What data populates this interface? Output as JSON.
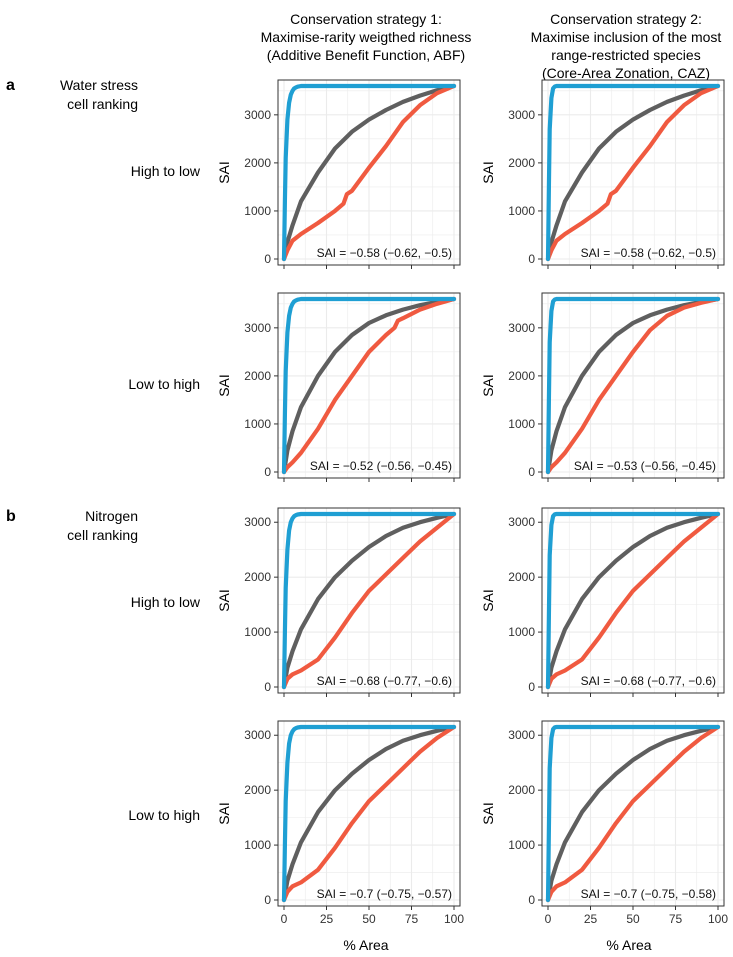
{
  "figure": {
    "column_headers": [
      [
        "Conservation strategy 1:",
        "Maximise-rarity weigthed richness",
        "(Additive Benefit Function, ABF)"
      ],
      [
        "Conservation strategy 2:",
        "Maximise inclusion of the most",
        "range-restricted species",
        "(Core-Area Zonation, CAZ)"
      ]
    ],
    "sections": [
      {
        "letter": "a",
        "label_lines": [
          "Water stress",
          "cell ranking"
        ]
      },
      {
        "letter": "b",
        "label_lines": [
          "Nitrogen",
          "cell ranking"
        ]
      }
    ],
    "row_labels": [
      "High to low",
      "Low to high",
      "High to low",
      "Low to high"
    ],
    "xlabel": "% Area",
    "ylabel": "SAI",
    "colors": {
      "blue": "#1f9fd3",
      "gray": "#5f5f5f",
      "red": "#f05a40",
      "grid": "#ebebeb",
      "frame": "#333333"
    }
  },
  "chart_data": [
    {
      "type": "line",
      "row": 0,
      "col": 0,
      "xlabel": "% Area",
      "ylabel": "SAI",
      "xlim": [
        0,
        100
      ],
      "ylim": [
        0,
        3600
      ],
      "xticks": [
        0,
        25,
        50,
        75,
        100
      ],
      "yticks": [
        0,
        1000,
        2000,
        3000
      ],
      "ymax": 3600,
      "annotation": "SAI = −0.58 (−0.62, −0.5)",
      "series": [
        {
          "name": "blue",
          "x": [
            0,
            0.5,
            1,
            2,
            3,
            4,
            5,
            6,
            7,
            8,
            10,
            100
          ],
          "y": [
            0,
            1200,
            2100,
            2900,
            3250,
            3420,
            3500,
            3550,
            3570,
            3585,
            3600,
            3600
          ]
        },
        {
          "name": "gray",
          "x": [
            0,
            2,
            5,
            10,
            20,
            30,
            40,
            50,
            60,
            70,
            80,
            90,
            100
          ],
          "y": [
            0,
            350,
            700,
            1200,
            1800,
            2300,
            2650,
            2900,
            3100,
            3270,
            3400,
            3510,
            3600
          ]
        },
        {
          "name": "red",
          "x": [
            0,
            2,
            5,
            10,
            20,
            30,
            35,
            37,
            40,
            50,
            60,
            70,
            80,
            90,
            100
          ],
          "y": [
            0,
            180,
            380,
            520,
            750,
            1000,
            1150,
            1350,
            1420,
            1900,
            2350,
            2850,
            3200,
            3450,
            3600
          ]
        }
      ]
    },
    {
      "type": "line",
      "row": 0,
      "col": 1,
      "xlabel": "% Area",
      "ylabel": "SAI",
      "xlim": [
        0,
        100
      ],
      "ylim": [
        0,
        3600
      ],
      "xticks": [
        0,
        25,
        50,
        75,
        100
      ],
      "yticks": [
        0,
        1000,
        2000,
        3000
      ],
      "ymax": 3600,
      "annotation": "SAI = −0.58 (−0.62, −0.5)",
      "series": [
        {
          "name": "blue",
          "x": [
            0,
            0.5,
            1,
            2,
            3,
            4,
            5,
            100
          ],
          "y": [
            0,
            1500,
            2700,
            3350,
            3550,
            3590,
            3600,
            3600
          ]
        },
        {
          "name": "gray",
          "x": [
            0,
            2,
            5,
            10,
            20,
            30,
            40,
            50,
            60,
            70,
            80,
            90,
            100
          ],
          "y": [
            0,
            350,
            700,
            1200,
            1800,
            2300,
            2650,
            2900,
            3100,
            3270,
            3400,
            3510,
            3600
          ]
        },
        {
          "name": "red",
          "x": [
            0,
            2,
            5,
            10,
            20,
            30,
            35,
            37,
            40,
            50,
            60,
            70,
            80,
            90,
            100
          ],
          "y": [
            0,
            180,
            380,
            520,
            750,
            1000,
            1150,
            1350,
            1420,
            1900,
            2350,
            2850,
            3200,
            3450,
            3600
          ]
        }
      ]
    },
    {
      "type": "line",
      "row": 1,
      "col": 0,
      "xlabel": "% Area",
      "ylabel": "SAI",
      "xlim": [
        0,
        100
      ],
      "ylim": [
        0,
        3600
      ],
      "xticks": [
        0,
        25,
        50,
        75,
        100
      ],
      "yticks": [
        0,
        1000,
        2000,
        3000
      ],
      "ymax": 3600,
      "annotation": "SAI = −0.52 (−0.56, −0.45)",
      "series": [
        {
          "name": "blue",
          "x": [
            0,
            0.5,
            1,
            2,
            3,
            4,
            5,
            6,
            7,
            8,
            10,
            100
          ],
          "y": [
            0,
            1200,
            2100,
            2900,
            3250,
            3420,
            3500,
            3550,
            3570,
            3585,
            3600,
            3600
          ]
        },
        {
          "name": "gray",
          "x": [
            0,
            2,
            5,
            10,
            20,
            30,
            40,
            50,
            60,
            70,
            80,
            90,
            100
          ],
          "y": [
            0,
            450,
            850,
            1350,
            2000,
            2500,
            2850,
            3100,
            3260,
            3380,
            3470,
            3540,
            3600
          ]
        },
        {
          "name": "red",
          "x": [
            0,
            2,
            5,
            10,
            20,
            30,
            40,
            50,
            60,
            65,
            67,
            70,
            80,
            90,
            100
          ],
          "y": [
            0,
            100,
            200,
            400,
            900,
            1500,
            2000,
            2500,
            2850,
            3000,
            3150,
            3200,
            3380,
            3500,
            3600
          ]
        }
      ]
    },
    {
      "type": "line",
      "row": 1,
      "col": 1,
      "xlabel": "% Area",
      "ylabel": "SAI",
      "xlim": [
        0,
        100
      ],
      "ylim": [
        0,
        3600
      ],
      "xticks": [
        0,
        25,
        50,
        75,
        100
      ],
      "yticks": [
        0,
        1000,
        2000,
        3000
      ],
      "ymax": 3600,
      "annotation": "SAI = −0.53 (−0.56, −0.45)",
      "series": [
        {
          "name": "blue",
          "x": [
            0,
            0.5,
            1,
            2,
            3,
            4,
            5,
            100
          ],
          "y": [
            0,
            1500,
            2700,
            3350,
            3550,
            3590,
            3600,
            3600
          ]
        },
        {
          "name": "gray",
          "x": [
            0,
            2,
            5,
            10,
            20,
            30,
            40,
            50,
            60,
            70,
            80,
            90,
            100
          ],
          "y": [
            0,
            450,
            850,
            1350,
            2000,
            2500,
            2850,
            3100,
            3260,
            3380,
            3470,
            3540,
            3600
          ]
        },
        {
          "name": "red",
          "x": [
            0,
            2,
            5,
            10,
            20,
            30,
            40,
            50,
            60,
            70,
            80,
            90,
            100
          ],
          "y": [
            0,
            100,
            200,
            400,
            900,
            1500,
            2000,
            2500,
            2950,
            3250,
            3420,
            3520,
            3600
          ]
        }
      ]
    },
    {
      "type": "line",
      "row": 2,
      "col": 0,
      "xlabel": "% Area",
      "ylabel": "SAI",
      "xlim": [
        0,
        100
      ],
      "ylim": [
        0,
        3150
      ],
      "xticks": [
        0,
        25,
        50,
        75,
        100
      ],
      "yticks": [
        0,
        1000,
        2000,
        3000
      ],
      "ymax": 3150,
      "annotation": "SAI = −0.68 (−0.77, −0.6)",
      "series": [
        {
          "name": "blue",
          "x": [
            0,
            0.5,
            1,
            2,
            3,
            4,
            5,
            6,
            7,
            8,
            10,
            100
          ],
          "y": [
            0,
            1000,
            1800,
            2500,
            2850,
            3000,
            3070,
            3110,
            3130,
            3140,
            3150,
            3150
          ]
        },
        {
          "name": "gray",
          "x": [
            0,
            2,
            5,
            10,
            20,
            30,
            40,
            50,
            60,
            70,
            80,
            90,
            100
          ],
          "y": [
            0,
            350,
            650,
            1050,
            1600,
            2000,
            2300,
            2550,
            2750,
            2900,
            3000,
            3080,
            3150
          ]
        },
        {
          "name": "red",
          "x": [
            0,
            2,
            5,
            10,
            20,
            30,
            40,
            50,
            60,
            70,
            80,
            90,
            100
          ],
          "y": [
            0,
            150,
            230,
            300,
            500,
            900,
            1350,
            1750,
            2050,
            2350,
            2650,
            2900,
            3150
          ]
        }
      ]
    },
    {
      "type": "line",
      "row": 2,
      "col": 1,
      "xlabel": "% Area",
      "ylabel": "SAI",
      "xlim": [
        0,
        100
      ],
      "ylim": [
        0,
        3150
      ],
      "xticks": [
        0,
        25,
        50,
        75,
        100
      ],
      "yticks": [
        0,
        1000,
        2000,
        3000
      ],
      "ymax": 3150,
      "annotation": "SAI = −0.68 (−0.77, −0.6)",
      "series": [
        {
          "name": "blue",
          "x": [
            0,
            0.5,
            1,
            2,
            3,
            4,
            5,
            100
          ],
          "y": [
            0,
            1300,
            2400,
            2950,
            3110,
            3145,
            3150,
            3150
          ]
        },
        {
          "name": "gray",
          "x": [
            0,
            2,
            5,
            10,
            20,
            30,
            40,
            50,
            60,
            70,
            80,
            90,
            100
          ],
          "y": [
            0,
            350,
            650,
            1050,
            1600,
            2000,
            2300,
            2550,
            2750,
            2900,
            3000,
            3080,
            3150
          ]
        },
        {
          "name": "red",
          "x": [
            0,
            2,
            5,
            10,
            20,
            30,
            40,
            50,
            60,
            70,
            80,
            90,
            100
          ],
          "y": [
            0,
            150,
            230,
            300,
            500,
            900,
            1350,
            1750,
            2050,
            2350,
            2650,
            2900,
            3150
          ]
        }
      ]
    },
    {
      "type": "line",
      "row": 3,
      "col": 0,
      "xlabel": "% Area",
      "ylabel": "SAI",
      "xlim": [
        0,
        100
      ],
      "ylim": [
        0,
        3150
      ],
      "xticks": [
        0,
        25,
        50,
        75,
        100
      ],
      "yticks": [
        0,
        1000,
        2000,
        3000
      ],
      "ymax": 3150,
      "annotation": "SAI = −0.7 (−0.75, −0.57)",
      "series": [
        {
          "name": "blue",
          "x": [
            0,
            0.5,
            1,
            2,
            3,
            4,
            5,
            6,
            7,
            8,
            10,
            100
          ],
          "y": [
            0,
            1000,
            1800,
            2500,
            2850,
            3000,
            3070,
            3110,
            3130,
            3140,
            3150,
            3150
          ]
        },
        {
          "name": "gray",
          "x": [
            0,
            2,
            5,
            10,
            20,
            30,
            40,
            50,
            60,
            70,
            80,
            90,
            100
          ],
          "y": [
            0,
            350,
            650,
            1050,
            1600,
            2000,
            2300,
            2550,
            2750,
            2900,
            3000,
            3080,
            3150
          ]
        },
        {
          "name": "red",
          "x": [
            0,
            2,
            5,
            10,
            20,
            30,
            40,
            50,
            60,
            70,
            80,
            90,
            100
          ],
          "y": [
            0,
            150,
            250,
            320,
            550,
            950,
            1400,
            1800,
            2100,
            2400,
            2700,
            2950,
            3150
          ]
        }
      ]
    },
    {
      "type": "line",
      "row": 3,
      "col": 1,
      "xlabel": "% Area",
      "ylabel": "SAI",
      "xlim": [
        0,
        100
      ],
      "ylim": [
        0,
        3150
      ],
      "xticks": [
        0,
        25,
        50,
        75,
        100
      ],
      "yticks": [
        0,
        1000,
        2000,
        3000
      ],
      "ymax": 3150,
      "annotation": "SAI = −0.7 (−0.75, −0.58)",
      "series": [
        {
          "name": "blue",
          "x": [
            0,
            0.5,
            1,
            2,
            3,
            4,
            5,
            100
          ],
          "y": [
            0,
            1300,
            2400,
            2950,
            3110,
            3145,
            3150,
            3150
          ]
        },
        {
          "name": "gray",
          "x": [
            0,
            2,
            5,
            10,
            20,
            30,
            40,
            50,
            60,
            70,
            80,
            90,
            100
          ],
          "y": [
            0,
            350,
            650,
            1050,
            1600,
            2000,
            2300,
            2550,
            2750,
            2900,
            3000,
            3080,
            3150
          ]
        },
        {
          "name": "red",
          "x": [
            0,
            2,
            5,
            10,
            20,
            30,
            40,
            50,
            60,
            70,
            80,
            90,
            100
          ],
          "y": [
            0,
            150,
            250,
            320,
            550,
            950,
            1400,
            1800,
            2100,
            2400,
            2700,
            2950,
            3150
          ]
        }
      ]
    }
  ]
}
